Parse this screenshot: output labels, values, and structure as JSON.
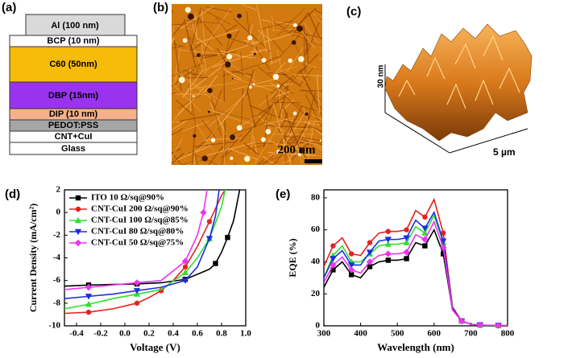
{
  "panels": {
    "a": {
      "label": "(a)",
      "layers": [
        "Al (100 nm)",
        "BCP (10 nm)",
        "C60 (50nm)",
        "DBP (15nm)",
        "DIP (10 nm)",
        "PEDOT:PSS",
        "CNT+CuI",
        "Glass"
      ]
    },
    "b": {
      "label": "(b)",
      "scale_bar": "200 nm"
    },
    "c": {
      "label": "(c)",
      "z_label": "30 nm",
      "xy_label": "5 µm"
    },
    "d": {
      "label": "(d)"
    },
    "e": {
      "label": "(e)"
    }
  },
  "chart_data": [
    {
      "type": "line",
      "x_label": "Voltage (V)",
      "y_label": "Current Density (mA/cm²)",
      "xlim": [
        -0.5,
        1.0
      ],
      "ylim": [
        -10,
        2
      ],
      "xticks": [
        -0.4,
        -0.2,
        {
          "value": 0,
          "label": "0.0"
        },
        0.2,
        0.4,
        0.6,
        0.8,
        {
          "value": 1,
          "label": "1.0"
        }
      ],
      "yticks": [
        -10,
        -8,
        -6,
        -4,
        -2,
        0,
        2
      ],
      "legend": "top-left",
      "series": [
        {
          "name": "ITO 10 Ω/sq@90%",
          "color": "#000000",
          "marker": "square",
          "x": [
            -0.5,
            -0.3,
            -0.1,
            0.1,
            0.3,
            0.5,
            0.7,
            0.75,
            0.8,
            0.85,
            0.9,
            0.95
          ],
          "values": [
            -6.5,
            -6.4,
            -6.35,
            -6.3,
            -6.2,
            -5.9,
            -5.0,
            -4.5,
            -3.5,
            -2.2,
            -0.7,
            2
          ]
        },
        {
          "name": "CNT-CuI 200 Ω/sq@90%",
          "color": "#e8211e",
          "marker": "circle",
          "x": [
            -0.5,
            -0.3,
            -0.1,
            0.1,
            0.2,
            0.3,
            0.4,
            0.5,
            0.6,
            0.7,
            0.8,
            0.83
          ],
          "values": [
            -8.9,
            -8.8,
            -8.5,
            -8.0,
            -7.5,
            -6.9,
            -6.0,
            -4.8,
            -3.0,
            -0.8,
            1.5,
            2
          ]
        },
        {
          "name": "CNT-CuI 100 Ω/sq@85%",
          "color": "#33dd33",
          "marker": "triangle-up",
          "x": [
            -0.5,
            -0.3,
            -0.1,
            0.1,
            0.3,
            0.5,
            0.6,
            0.7,
            0.8,
            0.83
          ],
          "values": [
            -8.5,
            -8.1,
            -7.6,
            -7.2,
            -6.8,
            -5.3,
            -4.0,
            -2.3,
            0.5,
            2
          ]
        },
        {
          "name": "CNT-CuI 80 Ω/sq@80%",
          "color": "#1a2fe0",
          "marker": "triangle-down",
          "x": [
            -0.5,
            -0.3,
            -0.1,
            0.1,
            0.3,
            0.5,
            0.6,
            0.7,
            0.75,
            0.78
          ],
          "values": [
            -7.6,
            -7.4,
            -7.2,
            -6.9,
            -6.6,
            -6.0,
            -4.8,
            -2.3,
            -0.3,
            2
          ]
        },
        {
          "name": "CNT-CuI 50 Ω/sq@75%",
          "color": "#ee33ee",
          "marker": "diamond",
          "x": [
            -0.5,
            -0.3,
            -0.1,
            0.1,
            0.3,
            0.5,
            0.6,
            0.65,
            0.68
          ],
          "values": [
            -6.8,
            -6.6,
            -6.4,
            -6.2,
            -6.0,
            -4.3,
            -2.0,
            0,
            2
          ]
        }
      ]
    },
    {
      "type": "line",
      "x_label": "Wavelength (nm)",
      "y_label": "EQE (%)",
      "xlim": [
        300,
        800
      ],
      "ylim": [
        0,
        85
      ],
      "xticks": [
        300,
        400,
        500,
        600,
        700,
        800
      ],
      "yticks": [
        0,
        20,
        40,
        60,
        80
      ],
      "x": [
        300,
        325,
        350,
        375,
        400,
        425,
        450,
        475,
        500,
        525,
        550,
        575,
        600,
        625,
        650,
        675,
        700,
        725,
        750,
        775,
        800
      ],
      "series": [
        {
          "color": "#000000",
          "marker": "square",
          "values": [
            24,
            35,
            40,
            32,
            30,
            37,
            40,
            41,
            41,
            42,
            52,
            50,
            60,
            45,
            10,
            3,
            1,
            0.5,
            0.3,
            0.2,
            0.1
          ]
        },
        {
          "color": "#e8211e",
          "marker": "circle",
          "values": [
            37,
            50,
            55,
            45,
            44,
            52,
            58,
            59,
            59,
            60,
            72,
            68,
            79,
            58,
            12,
            3,
            1,
            0.5,
            0.3,
            0.2,
            0.1
          ]
        },
        {
          "color": "#33dd33",
          "marker": "triangle-up",
          "values": [
            30,
            44,
            50,
            40,
            40,
            45,
            50,
            51,
            51,
            52,
            62,
            58,
            69,
            52,
            11,
            3,
            1,
            0.5,
            0.3,
            0.2,
            0.1
          ]
        },
        {
          "color": "#1a2fe0",
          "marker": "triangle-down",
          "values": [
            30,
            42,
            47,
            38,
            38,
            46,
            53,
            54,
            54,
            55,
            66,
            61,
            71,
            53,
            11,
            3,
            1,
            0.5,
            0.3,
            0.2,
            0.1
          ]
        },
        {
          "color": "#ee33ee",
          "marker": "diamond",
          "values": [
            27,
            38,
            43,
            35,
            33,
            40,
            44,
            45,
            45,
            46,
            57,
            54,
            65,
            49,
            10,
            3,
            1,
            0.5,
            0.3,
            0.2,
            0.1
          ]
        }
      ]
    }
  ]
}
